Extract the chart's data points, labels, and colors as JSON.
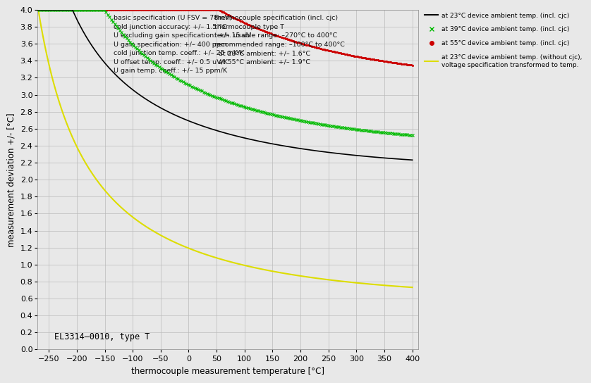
{
  "xlabel": "thermocouple measurement temperature [°C]",
  "ylabel": "measurement deviation +/- [°C]",
  "xlim": [
    -270,
    410
  ],
  "ylim": [
    0,
    4.0
  ],
  "xticks": [
    -250,
    -200,
    -150,
    -100,
    -50,
    0,
    50,
    100,
    150,
    200,
    250,
    300,
    350,
    400
  ],
  "yticks": [
    0,
    0.2,
    0.4,
    0.6,
    0.8,
    1.0,
    1.2,
    1.4,
    1.6,
    1.8,
    2.0,
    2.2,
    2.4,
    2.6,
    2.8,
    3.0,
    3.2,
    3.4,
    3.6,
    3.8,
    4.0
  ],
  "annotation": "EL3314–0010, type T",
  "text_block1": "basic specification (U FSV = 78mV)\ncold junction accuracy: +/– 1.5 °C\nU excluding gain specification: +/– 15 uV\nU gain specification: +/– 400 ppm\ncold junction temp. coeff.: +/– 25 mK/K\nU offset temp. coeff.: +/– 0.5 uV/K\nU gain temp. coeff.: +/– 15 ppm/K",
  "text_block2": "thermocouple specification (incl. cjc)\nthermocouple type T\ntech. usable range: –270°C to 400°C\nrecommended range: –100°C to 400°C\n  at 23°C ambient: +/– 1.6°C\n  at 55°C ambient: +/– 1.9°C",
  "legend_23_label": "at 23°C device ambient temp. (incl. cjc)",
  "legend_39_label": "at 39°C device ambient temp. (incl. cjc)",
  "legend_55_label": "at 55°C device ambient temp. (incl. cjc)",
  "legend_nocjc_label": "at 23°C device ambient temp. (without cjc),\nvoltage specification transformed to temp.",
  "color_23": "#000000",
  "color_39": "#00bb00",
  "color_55": "#cc0000",
  "color_nocjc": "#dddd00",
  "bg_color": "#e8e8e8"
}
